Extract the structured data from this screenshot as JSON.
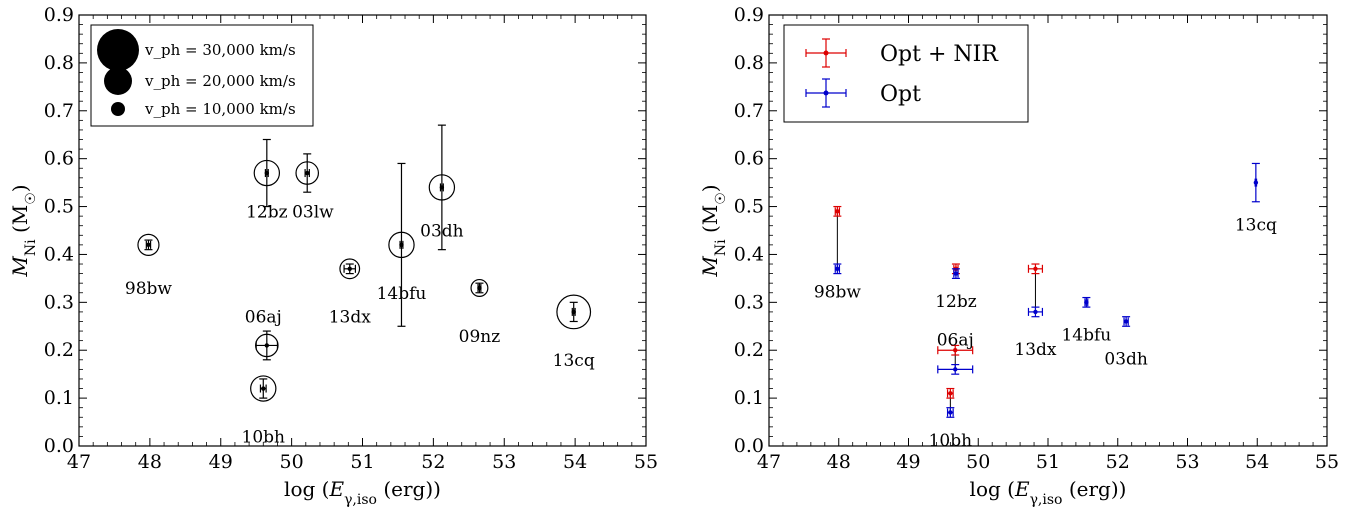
{
  "chart_data": [
    {
      "type": "scatter",
      "xlabel": "log (E_γ,iso (erg))",
      "ylabel": "M_Ni (M_☉)",
      "xlim": [
        47,
        55
      ],
      "ylim": [
        0.0,
        0.9
      ],
      "xticks": [
        47,
        48,
        49,
        50,
        51,
        52,
        53,
        54,
        55
      ],
      "yticks": [
        0.0,
        0.1,
        0.2,
        0.3,
        0.4,
        0.5,
        0.6,
        0.7,
        0.8,
        0.9
      ],
      "xtick_labels": [
        "47",
        "48",
        "49",
        "50",
        "51",
        "52",
        "53",
        "54",
        "55"
      ],
      "ytick_labels": [
        "0.0",
        "0.1",
        "0.2",
        "0.3",
        "0.4",
        "0.5",
        "0.6",
        "0.7",
        "0.8",
        "0.9"
      ],
      "legend": {
        "placement": "top-left",
        "entries": [
          {
            "label": "v_ph = 30,000 km/s",
            "vph": 30000
          },
          {
            "label": "v_ph = 20,000 km/s",
            "vph": 20000
          },
          {
            "label": "v_ph = 10,000 km/s",
            "vph": 10000
          }
        ]
      },
      "points": [
        {
          "name": "98bw",
          "x": 47.98,
          "y": 0.42,
          "ylo": 0.41,
          "yhi": 0.43,
          "xerr": 0.03,
          "vph": 15000,
          "label": "98bw",
          "label_pos": [
            47.98,
            0.33
          ]
        },
        {
          "name": "12bz",
          "x": 49.65,
          "y": 0.57,
          "ylo": 0.5,
          "yhi": 0.64,
          "xerr": 0.02,
          "vph": 18000,
          "label": "12bz",
          "label_pos": [
            49.65,
            0.49
          ]
        },
        {
          "name": "03lw",
          "x": 50.22,
          "y": 0.57,
          "ylo": 0.53,
          "yhi": 0.61,
          "xerr": 0.03,
          "vph": 16000,
          "label": "03lw",
          "label_pos": [
            50.3,
            0.49
          ]
        },
        {
          "name": "13dx",
          "x": 50.82,
          "y": 0.37,
          "ylo": 0.36,
          "yhi": 0.38,
          "xerr": 0.08,
          "vph": 14000,
          "label": "13dx",
          "label_pos": [
            50.82,
            0.27
          ]
        },
        {
          "name": "14bfu",
          "x": 51.55,
          "y": 0.42,
          "ylo": 0.25,
          "yhi": 0.59,
          "xerr": 0.02,
          "vph": 18000,
          "label": "14bfu",
          "label_pos": [
            51.55,
            0.32
          ]
        },
        {
          "name": "03dh",
          "x": 52.12,
          "y": 0.54,
          "ylo": 0.41,
          "yhi": 0.67,
          "xerr": 0.02,
          "vph": 18000,
          "label": "03dh",
          "label_pos": [
            52.12,
            0.45
          ]
        },
        {
          "name": "09nz",
          "x": 52.65,
          "y": 0.33,
          "ylo": 0.32,
          "yhi": 0.34,
          "xerr": 0.02,
          "vph": 12000,
          "label": "09nz",
          "label_pos": [
            52.65,
            0.23
          ]
        },
        {
          "name": "13cq",
          "x": 53.98,
          "y": 0.28,
          "ylo": 0.26,
          "yhi": 0.3,
          "xerr": 0.02,
          "vph": 24000,
          "label": "13cq",
          "label_pos": [
            53.98,
            0.18
          ]
        },
        {
          "name": "06aj",
          "x": 49.65,
          "y": 0.21,
          "ylo": 0.18,
          "yhi": 0.24,
          "xerr": 0.15,
          "vph": 16000,
          "label": "06aj",
          "label_pos": [
            49.6,
            0.27
          ]
        },
        {
          "name": "10bh",
          "x": 49.6,
          "y": 0.12,
          "ylo": 0.1,
          "yhi": 0.14,
          "xerr": 0.04,
          "vph": 18000,
          "label": "10bh",
          "label_pos": [
            49.6,
            0.02
          ]
        }
      ]
    },
    {
      "type": "scatter",
      "xlabel": "log (E_γ,iso (erg))",
      "ylabel": "M_Ni (M_☉)",
      "xlim": [
        47,
        55
      ],
      "ylim": [
        0.0,
        0.9
      ],
      "xticks": [
        47,
        48,
        49,
        50,
        51,
        52,
        53,
        54,
        55
      ],
      "yticks": [
        0.0,
        0.1,
        0.2,
        0.3,
        0.4,
        0.5,
        0.6,
        0.7,
        0.8,
        0.9
      ],
      "xtick_labels": [
        "47",
        "48",
        "49",
        "50",
        "51",
        "52",
        "53",
        "54",
        "55"
      ],
      "ytick_labels": [
        "0.0",
        "0.1",
        "0.2",
        "0.3",
        "0.4",
        "0.5",
        "0.6",
        "0.7",
        "0.8",
        "0.9"
      ],
      "legend": {
        "placement": "top-left",
        "entries": [
          {
            "label": "Opt + NIR",
            "color": "#dd0000"
          },
          {
            "label": "Opt",
            "color": "#0000cc"
          }
        ]
      },
      "series": [
        {
          "name": "Opt + NIR",
          "color": "#dd0000",
          "points": [
            {
              "name": "98bw",
              "x": 47.98,
              "y": 0.49,
              "ylo": 0.48,
              "yhi": 0.5,
              "xerr": 0.03
            },
            {
              "name": "12bz",
              "x": 49.68,
              "y": 0.37,
              "ylo": 0.36,
              "yhi": 0.38,
              "xerr": 0.03
            },
            {
              "name": "13dx",
              "x": 50.82,
              "y": 0.37,
              "ylo": 0.36,
              "yhi": 0.38,
              "xerr": 0.1
            },
            {
              "name": "06aj",
              "x": 49.67,
              "y": 0.2,
              "ylo": 0.19,
              "yhi": 0.21,
              "xerr": 0.25
            },
            {
              "name": "10bh",
              "x": 49.6,
              "y": 0.11,
              "ylo": 0.1,
              "yhi": 0.12,
              "xerr": 0.04
            }
          ]
        },
        {
          "name": "Opt",
          "color": "#0000cc",
          "points": [
            {
              "name": "98bw",
              "x": 47.98,
              "y": 0.37,
              "ylo": 0.36,
              "yhi": 0.38,
              "xerr": 0.03
            },
            {
              "name": "12bz",
              "x": 49.68,
              "y": 0.36,
              "ylo": 0.35,
              "yhi": 0.37,
              "xerr": 0.03
            },
            {
              "name": "13dx",
              "x": 50.82,
              "y": 0.28,
              "ylo": 0.27,
              "yhi": 0.29,
              "xerr": 0.1
            },
            {
              "name": "06aj",
              "x": 49.67,
              "y": 0.16,
              "ylo": 0.15,
              "yhi": 0.17,
              "xerr": 0.25
            },
            {
              "name": "10bh",
              "x": 49.6,
              "y": 0.07,
              "ylo": 0.06,
              "yhi": 0.08,
              "xerr": 0.04
            },
            {
              "name": "14bfu",
              "x": 51.55,
              "y": 0.3,
              "ylo": 0.29,
              "yhi": 0.31,
              "xerr": 0.02
            },
            {
              "name": "03dh",
              "x": 52.12,
              "y": 0.26,
              "ylo": 0.25,
              "yhi": 0.27,
              "xerr": 0.03
            },
            {
              "name": "13cq",
              "x": 53.98,
              "y": 0.55,
              "ylo": 0.51,
              "yhi": 0.59,
              "xerr": 0.01
            }
          ]
        }
      ],
      "connectors": [
        {
          "name": "98bw",
          "x": 47.98,
          "y1": 0.37,
          "y2": 0.49
        },
        {
          "name": "12bz",
          "x": 49.68,
          "y1": 0.36,
          "y2": 0.37
        },
        {
          "name": "13dx",
          "x": 50.82,
          "y1": 0.28,
          "y2": 0.37
        },
        {
          "name": "06aj",
          "x": 49.67,
          "y1": 0.16,
          "y2": 0.2
        },
        {
          "name": "10bh",
          "x": 49.6,
          "y1": 0.07,
          "y2": 0.11
        }
      ],
      "labels": [
        {
          "text": "98bw",
          "x": 47.98,
          "y": 0.31
        },
        {
          "text": "12bz",
          "x": 49.68,
          "y": 0.29
        },
        {
          "text": "06aj",
          "x": 49.67,
          "y": 0.21
        },
        {
          "text": "13dx",
          "x": 50.82,
          "y": 0.19
        },
        {
          "text": "14bfu",
          "x": 51.55,
          "y": 0.22
        },
        {
          "text": "03dh",
          "x": 52.12,
          "y": 0.17
        },
        {
          "text": "10bh",
          "x": 49.6,
          "y": 0.0
        },
        {
          "text": "13cq",
          "x": 53.98,
          "y": 0.45
        }
      ]
    }
  ]
}
